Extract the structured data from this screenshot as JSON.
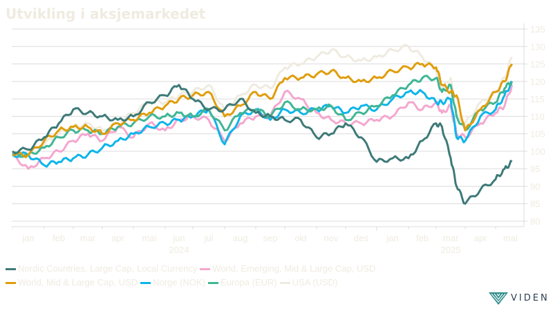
{
  "chart_data": {
    "type": "line",
    "title": "Utvikling i aksjemarkedet",
    "xlabel": "",
    "ylabel": "",
    "ylim": [
      80,
      135
    ],
    "yticks": [
      80,
      85,
      90,
      95,
      100,
      105,
      110,
      115,
      120,
      125,
      130,
      135
    ],
    "grid": true,
    "legend_position": "bottom",
    "x_unit": "months since start of 2024",
    "x_tick_labels": [
      "jan",
      "feb",
      "mar",
      "apr",
      "mai",
      "jun",
      "jul",
      "aug",
      "sep",
      "okt",
      "nov",
      "des",
      "jan",
      "feb",
      "mar",
      "apr",
      "mai"
    ],
    "year_labels": [
      {
        "label": "2024",
        "month_index": 5.5
      },
      {
        "label": "2025",
        "month_index": 14.5
      }
    ],
    "x": [
      0,
      0.5,
      1,
      1.5,
      2,
      2.5,
      3,
      3.5,
      4,
      4.5,
      5,
      5.5,
      6,
      6.5,
      7,
      7.5,
      8,
      8.5,
      9,
      9.5,
      10,
      10.5,
      11,
      11.5,
      12,
      12.5,
      13,
      13.5,
      14,
      14.2,
      14.5,
      14.7,
      15,
      15.5,
      16,
      16.3,
      16.55
    ],
    "series": [
      {
        "name": "Nordic Countries, Large Cap, Local Currency",
        "color": "#3d7a78",
        "values": [
          100,
          100.5,
          104,
          108,
          112,
          111,
          110,
          109,
          110,
          114,
          116,
          119,
          115,
          112,
          112,
          115,
          111,
          110,
          109,
          109,
          104,
          105,
          108,
          104,
          97,
          98,
          98,
          103,
          108,
          107,
          98,
          90,
          85,
          89,
          92,
          95,
          97
        ]
      },
      {
        "name": "World, Emerging, Mid & Large Cap, USD",
        "color": "#f4a7cf",
        "values": [
          99,
          95,
          98,
          100,
          103,
          105,
          103,
          107,
          104,
          108,
          106,
          109,
          110,
          109,
          103,
          108,
          110,
          110,
          117,
          115,
          111,
          109,
          108,
          108,
          109,
          110,
          114,
          112,
          114,
          111,
          113,
          105,
          104,
          108,
          111,
          113,
          119
        ]
      },
      {
        "name": "World, Mid & Large Cap, USD",
        "color": "#e09d0c",
        "values": [
          99,
          99,
          103,
          106,
          107,
          107,
          105,
          108,
          109,
          111,
          113,
          115,
          116,
          117,
          110,
          113,
          117,
          115,
          121,
          121,
          122,
          123,
          121,
          120,
          121,
          123,
          124,
          125,
          124,
          119,
          117,
          116,
          106,
          112,
          117,
          120,
          125
        ]
      },
      {
        "name": "Norge (NOK)",
        "color": "#0db5ea",
        "values": [
          99,
          99,
          96,
          97,
          98,
          99,
          101,
          103,
          105,
          107,
          108,
          109,
          110,
          112,
          102,
          110,
          112,
          109,
          112,
          111,
          112,
          113,
          111,
          113,
          112,
          115,
          117,
          117,
          114,
          114,
          115,
          104,
          103,
          110,
          112,
          116,
          120
        ]
      },
      {
        "name": "Europa (EUR)",
        "color": "#3fb695",
        "values": [
          99,
          99,
          101,
          104,
          106,
          106,
          105,
          107,
          108,
          110,
          110,
          111,
          110,
          112,
          106,
          111,
          112,
          110,
          114,
          112,
          112,
          113,
          109,
          111,
          113,
          116,
          119,
          121,
          121,
          117,
          119,
          110,
          106,
          112,
          114,
          118,
          120
        ]
      },
      {
        "name": "USA (USD)",
        "color": "#efebe0",
        "values": [
          99,
          99,
          102,
          105,
          107,
          108,
          106,
          108,
          111,
          114,
          114,
          116,
          117,
          119,
          112,
          116,
          119,
          118,
          124,
          125,
          127,
          129,
          127,
          126,
          127,
          129,
          130,
          127,
          123,
          118,
          121,
          110,
          108,
          114,
          117,
          121,
          127
        ]
      }
    ]
  },
  "logo": {
    "text": "VIDEN"
  }
}
